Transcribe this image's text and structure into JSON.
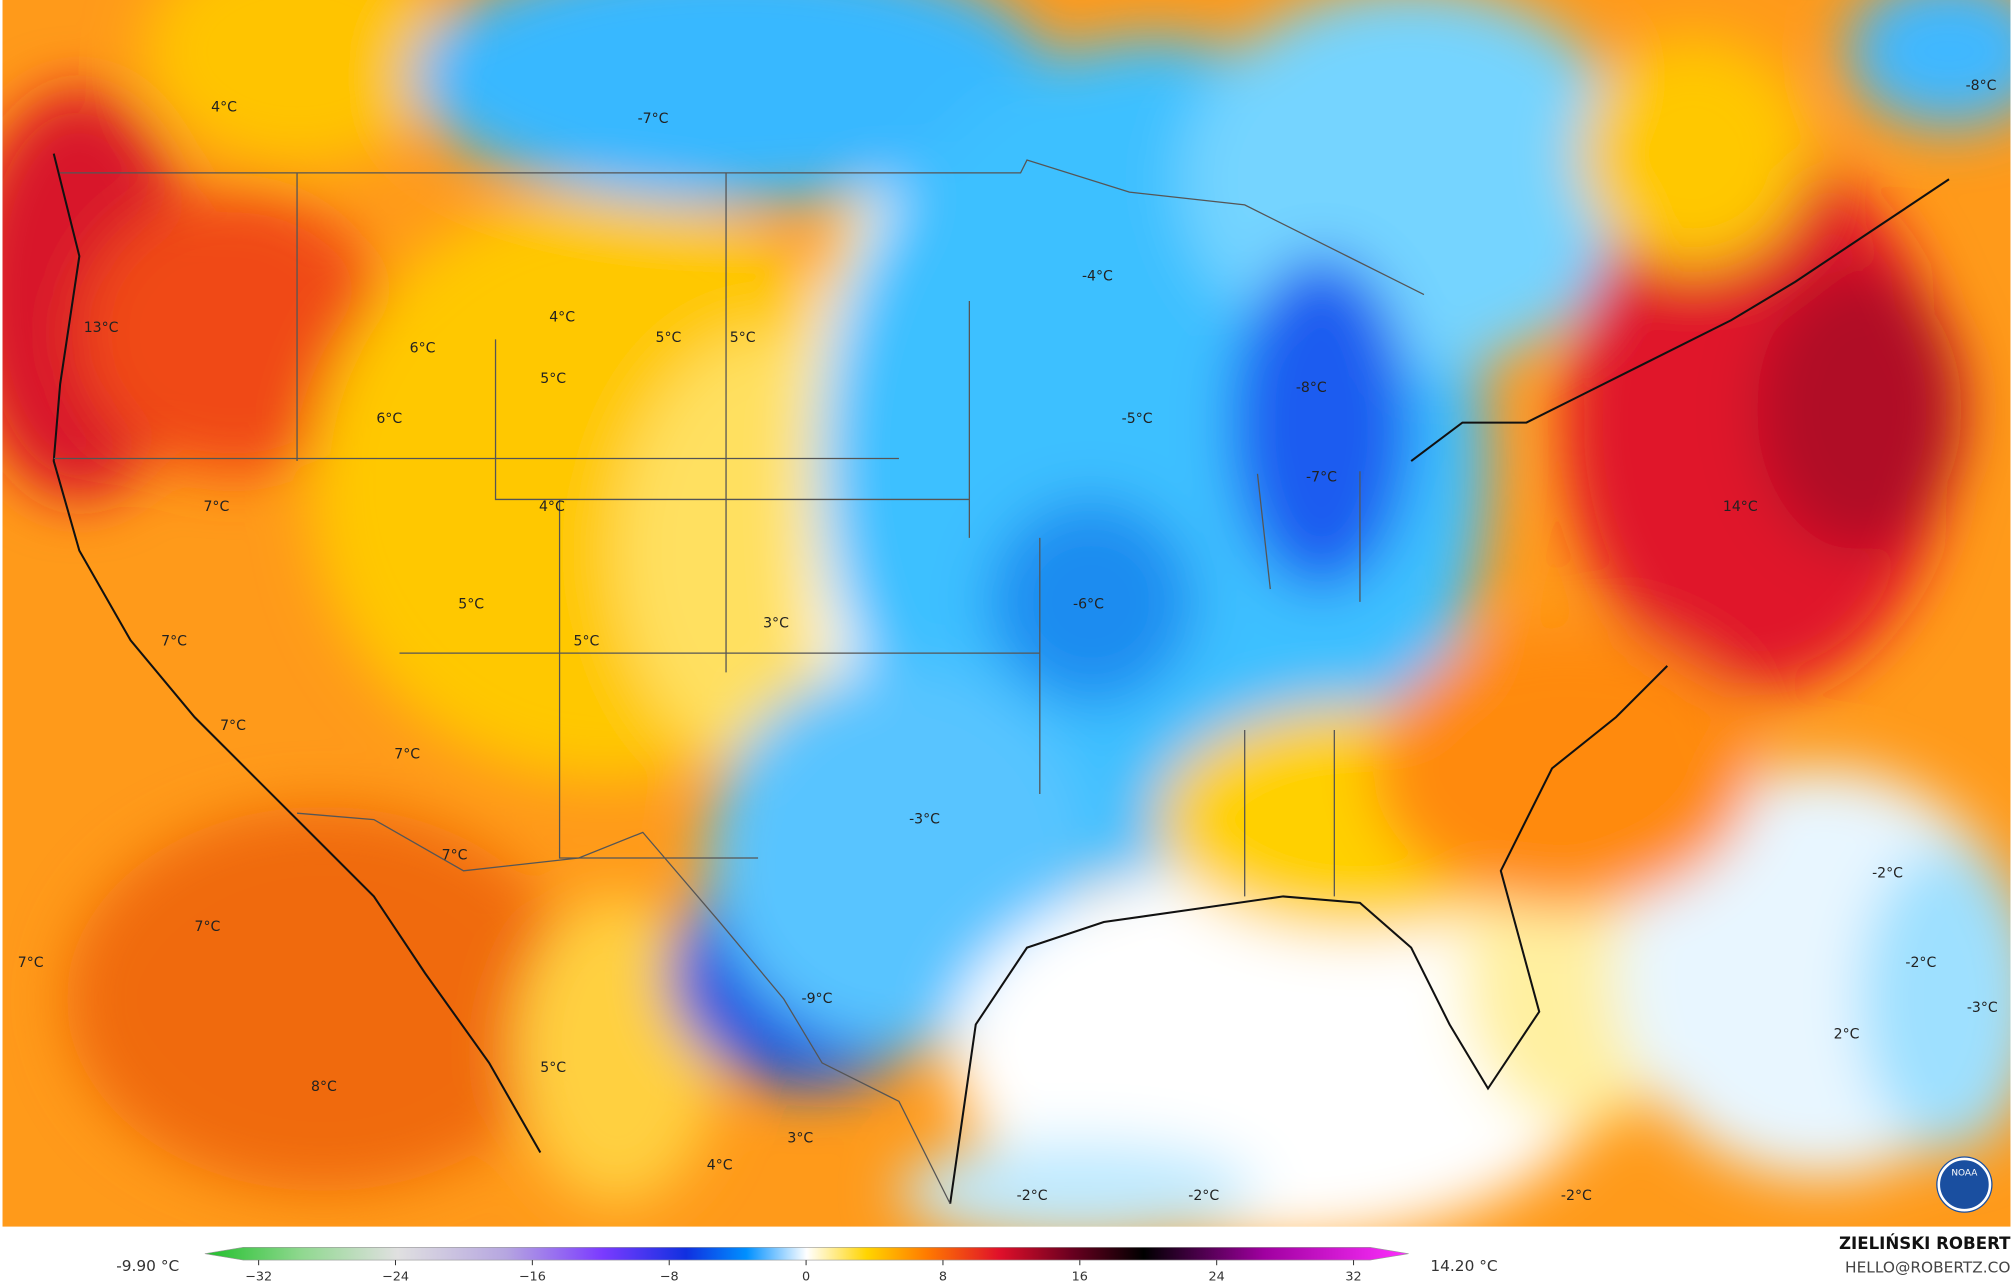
{
  "map": {
    "labels": [
      "4°C",
      "-7°C",
      "-8°C",
      "13°C",
      "6°C",
      "4°C",
      "5°C",
      "5°C",
      "5°C",
      "6°C",
      "-4°C",
      "-5°C",
      "-8°C",
      "-7°C",
      "7°C",
      "4°C",
      "14°C",
      "5°C",
      "5°C",
      "3°C",
      "-6°C",
      "7°C",
      "7°C",
      "7°C",
      "-3°C",
      "7°C",
      "-2°C",
      "7°C",
      "7°C",
      "-2°C",
      "-3°C",
      "-9°C",
      "2°C",
      "5°C",
      "8°C",
      "3°C",
      "4°C",
      "-2°C",
      "-2°C",
      "-2°C"
    ],
    "logo": "NOAA"
  },
  "colorbar": {
    "min_label": "-9.90 °C",
    "max_label": "14.20 °C",
    "ticks": [
      {
        "value": -32,
        "label": "−32"
      },
      {
        "value": -24,
        "label": "−24"
      },
      {
        "value": -16,
        "label": "−16"
      },
      {
        "value": -8,
        "label": "−8"
      },
      0,
      8,
      16,
      24,
      32
    ]
  },
  "credit": {
    "name": "ZIELIŃSKI ROBERT",
    "email": "HELLO@ROBERTZ.CO"
  }
}
